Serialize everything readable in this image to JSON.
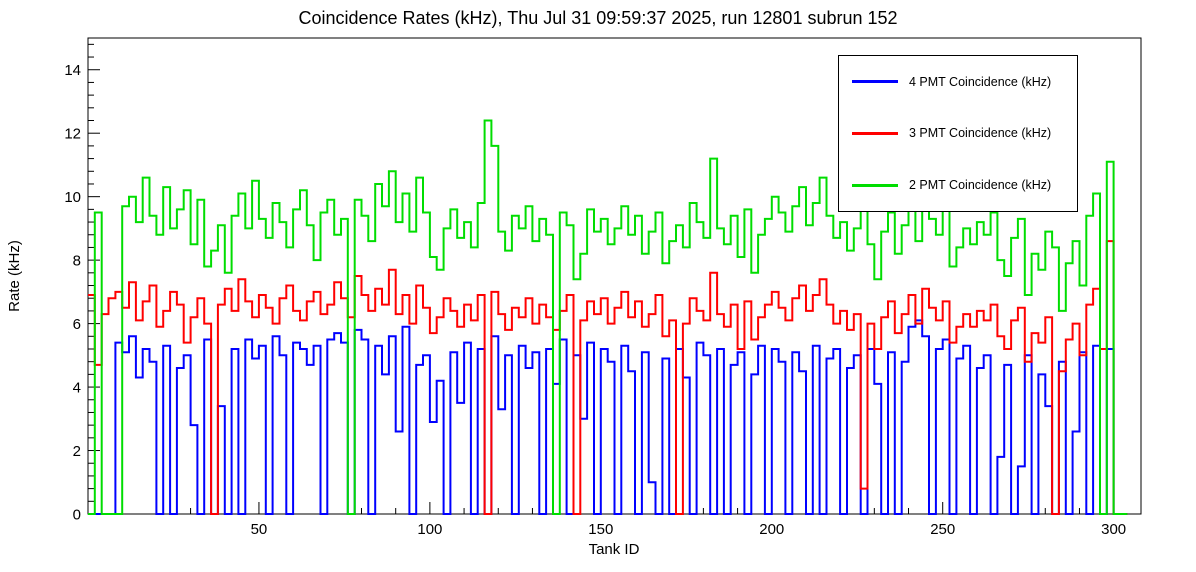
{
  "chart_data": {
    "type": "line",
    "subtype": "step-histogram",
    "title": "Coincidence Rates (kHz), Thu Jul 31 09:59:37 2025, run 12801 subrun 152",
    "xlabel": "Tank ID",
    "ylabel": "Rate (kHz)",
    "xlim": [
      0,
      308
    ],
    "ylim": [
      0,
      15
    ],
    "x_major_ticks": [
      50,
      100,
      150,
      200,
      250,
      300
    ],
    "x_minor_step": 10,
    "y_major_ticks": [
      0,
      2,
      4,
      6,
      8,
      10,
      12,
      14
    ],
    "y_minor_step": 0.4,
    "grid": false,
    "frame_color": "#000000",
    "background_color": "#ffffff",
    "legend_position": "top-right",
    "bin_width": 2,
    "x_start": 0,
    "series": [
      {
        "id": "4pmt",
        "name": "4 PMT Coincidence (kHz)",
        "color": "#0000ff",
        "values": [
          0,
          0,
          0,
          0,
          5.4,
          5.1,
          5.6,
          4.3,
          5.2,
          4.8,
          0,
          5.3,
          0,
          4.6,
          5.0,
          2.8,
          0,
          5.5,
          0,
          3.4,
          0,
          5.2,
          0,
          5.5,
          4.9,
          5.3,
          0,
          5.6,
          5.0,
          0,
          5.4,
          5.2,
          4.7,
          5.3,
          0,
          5.5,
          5.7,
          5.4,
          0,
          5.8,
          5.5,
          0,
          5.3,
          4.4,
          5.6,
          2.6,
          5.9,
          0,
          4.7,
          5.0,
          2.9,
          4.2,
          0,
          5.1,
          3.5,
          5.4,
          0,
          5.2,
          0,
          5.6,
          3.3,
          5.0,
          0,
          5.3,
          4.6,
          5.1,
          0,
          5.2,
          4.1,
          5.5,
          0,
          5.0,
          3.0,
          5.4,
          0,
          5.2,
          4.8,
          0,
          5.3,
          4.5,
          0,
          5.1,
          1.0,
          0,
          4.9,
          0,
          5.2,
          4.3,
          0,
          5.4,
          5.0,
          0,
          5.2,
          0,
          4.7,
          5.1,
          0,
          4.4,
          5.3,
          0,
          5.2,
          4.8,
          0,
          5.1,
          4.5,
          0,
          5.3,
          0,
          4.9,
          5.2,
          0,
          4.6,
          5.0,
          0,
          5.2,
          4.1,
          0,
          5.1,
          0,
          4.8,
          5.9,
          6.1,
          5.6,
          0,
          5.2,
          5.5,
          0,
          4.9,
          5.3,
          0,
          4.6,
          5.0,
          0,
          1.8,
          4.7,
          0,
          1.5,
          5.0,
          0,
          4.4,
          3.4,
          0,
          4.8,
          0,
          2.6,
          5.1,
          0,
          5.3,
          0,
          5.2,
          0,
          0
        ]
      },
      {
        "id": "3pmt",
        "name": "3 PMT Coincidence (kHz)",
        "color": "#ff0000",
        "values": [
          6.9,
          4.7,
          6.3,
          6.8,
          7.0,
          6.5,
          7.3,
          6.1,
          6.7,
          7.2,
          5.9,
          6.4,
          7.0,
          6.6,
          5.4,
          6.2,
          6.8,
          6.0,
          0,
          6.6,
          7.1,
          6.4,
          7.4,
          6.7,
          6.2,
          6.9,
          6.5,
          6.0,
          6.8,
          7.2,
          6.4,
          6.1,
          6.7,
          7.0,
          6.3,
          6.6,
          7.3,
          6.8,
          6.2,
          7.5,
          6.9,
          6.4,
          7.1,
          6.6,
          7.7,
          6.3,
          6.9,
          6.0,
          7.2,
          6.5,
          5.7,
          6.2,
          6.8,
          6.4,
          5.9,
          6.6,
          6.1,
          6.9,
          0,
          7.0,
          6.3,
          5.8,
          6.5,
          6.2,
          6.8,
          6.0,
          6.6,
          6.2,
          5.8,
          6.4,
          6.9,
          0,
          6.1,
          6.7,
          6.3,
          6.8,
          6.0,
          6.5,
          7.0,
          6.2,
          6.7,
          5.9,
          6.3,
          6.9,
          5.6,
          6.1,
          0,
          6.0,
          6.8,
          6.4,
          6.1,
          7.6,
          6.3,
          5.9,
          6.6,
          5.2,
          6.7,
          5.5,
          6.2,
          6.6,
          7.0,
          6.5,
          6.1,
          6.8,
          7.2,
          6.4,
          6.9,
          7.4,
          6.6,
          6.0,
          6.4,
          5.8,
          6.3,
          0.8,
          6.0,
          5.2,
          6.2,
          6.7,
          5.7,
          6.3,
          6.9,
          6.0,
          7.1,
          6.5,
          6.1,
          6.7,
          5.4,
          5.9,
          6.3,
          5.9,
          6.4,
          6.1,
          6.6,
          5.6,
          5.2,
          6.1,
          6.5,
          4.8,
          5.7,
          5.4,
          6.2,
          0,
          4.5,
          5.5,
          6.0,
          5.0,
          6.6,
          7.1,
          5.2,
          8.6,
          0,
          0
        ]
      },
      {
        "id": "2pmt",
        "name": "2 PMT Coincidence (kHz)",
        "color": "#00dd00",
        "values": [
          0,
          9.5,
          0,
          0,
          0,
          9.7,
          10.0,
          9.2,
          10.6,
          9.4,
          8.8,
          10.3,
          9.0,
          9.6,
          10.2,
          8.5,
          9.9,
          7.8,
          8.3,
          9.1,
          7.6,
          9.4,
          10.1,
          9.0,
          10.5,
          9.3,
          8.7,
          9.8,
          9.2,
          8.4,
          9.6,
          10.2,
          9.1,
          8.0,
          9.5,
          9.9,
          8.8,
          9.3,
          0,
          9.9,
          9.4,
          8.6,
          10.4,
          9.7,
          10.8,
          9.2,
          10.1,
          8.9,
          10.6,
          9.5,
          8.1,
          7.7,
          9.0,
          9.6,
          8.7,
          9.2,
          8.4,
          9.8,
          12.4,
          11.6,
          8.9,
          8.3,
          9.4,
          9.0,
          9.7,
          8.6,
          9.3,
          8.8,
          0,
          9.5,
          9.1,
          7.4,
          8.2,
          9.6,
          8.9,
          9.3,
          8.5,
          9.0,
          9.7,
          8.8,
          9.4,
          8.2,
          8.9,
          9.5,
          7.9,
          8.6,
          9.1,
          8.4,
          9.8,
          9.2,
          8.7,
          11.2,
          9.0,
          8.5,
          9.4,
          8.1,
          9.6,
          7.6,
          8.8,
          9.3,
          10.0,
          9.5,
          8.9,
          9.7,
          10.3,
          9.1,
          9.8,
          10.6,
          9.4,
          8.7,
          9.2,
          8.3,
          9.0,
          9.6,
          8.5,
          7.4,
          8.9,
          9.5,
          8.2,
          9.1,
          9.8,
          8.6,
          10.2,
          9.3,
          8.8,
          9.6,
          7.8,
          8.4,
          9.0,
          8.5,
          9.2,
          8.8,
          9.5,
          8.0,
          7.5,
          8.7,
          9.3,
          6.9,
          8.2,
          7.7,
          8.9,
          8.4,
          6.4,
          7.9,
          8.6,
          7.2,
          9.4,
          10.1,
          0,
          11.1,
          0,
          0
        ]
      }
    ]
  }
}
